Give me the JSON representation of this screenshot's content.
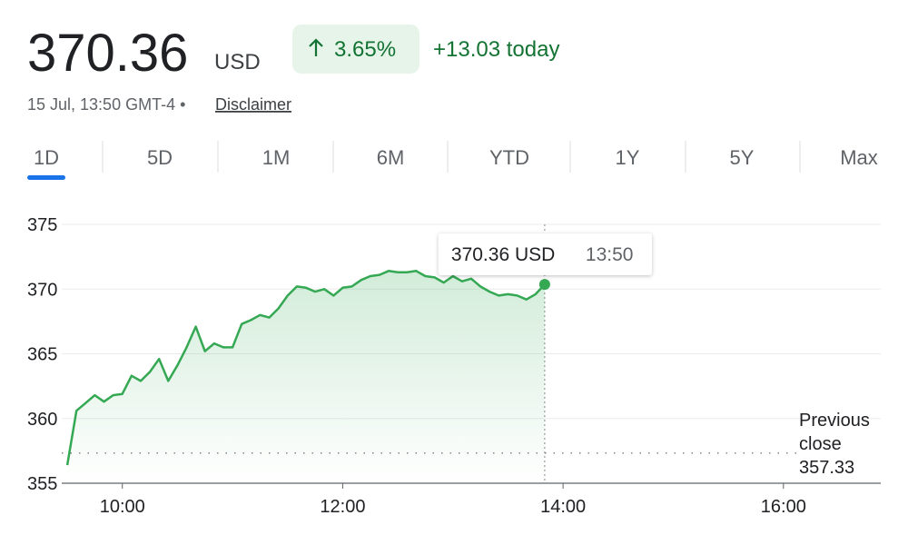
{
  "header": {
    "price": "370.36",
    "currency": "USD",
    "change_pct": "3.65%",
    "change_abs": "+13.03 today",
    "timestamp": "15 Jul, 13:50 GMT-4 •",
    "disclaimer": "Disclaimer"
  },
  "tabs": [
    "1D",
    "5D",
    "1M",
    "6M",
    "YTD",
    "1Y",
    "5Y",
    "Max"
  ],
  "active_tab": 0,
  "chart_data": {
    "type": "line",
    "x": [
      570,
      575,
      580,
      585,
      590,
      595,
      600,
      605,
      610,
      615,
      620,
      625,
      630,
      635,
      640,
      645,
      650,
      655,
      660,
      665,
      670,
      675,
      680,
      685,
      690,
      695,
      700,
      705,
      710,
      715,
      720,
      725,
      730,
      735,
      740,
      745,
      750,
      755,
      760,
      765,
      770,
      775,
      780,
      785,
      790,
      795,
      800,
      805,
      810,
      815,
      820,
      825,
      830
    ],
    "series": [
      {
        "color": "#34a853",
        "values": [
          356.4,
          360.6,
          361.2,
          361.8,
          361.3,
          361.8,
          361.9,
          363.3,
          362.9,
          363.6,
          364.6,
          362.9,
          364.1,
          365.5,
          367.1,
          365.2,
          365.8,
          365.5,
          365.5,
          367.3,
          367.6,
          368.0,
          367.8,
          368.5,
          369.5,
          370.2,
          370.1,
          369.8,
          370.0,
          369.5,
          370.1,
          370.2,
          370.7,
          371.0,
          371.1,
          371.4,
          371.3,
          371.3,
          371.4,
          371.0,
          370.9,
          370.5,
          371.0,
          370.6,
          370.8,
          370.2,
          369.8,
          369.5,
          369.6,
          369.5,
          369.2,
          369.6,
          370.36
        ]
      }
    ],
    "xlim": [
      567,
      1013
    ],
    "xticks": [
      {
        "value": 600,
        "label": "10:00"
      },
      {
        "value": 720,
        "label": "12:00"
      },
      {
        "value": 840,
        "label": "14:00"
      },
      {
        "value": 960,
        "label": "16:00"
      }
    ],
    "ylim": [
      355,
      375
    ],
    "yticks": [
      355,
      360,
      365,
      370,
      375
    ],
    "grid": true,
    "previous_close_label": "Previous close",
    "previous_close": 357.33,
    "tooltip": {
      "value_label": "370.36 USD",
      "time": "13:50"
    }
  }
}
